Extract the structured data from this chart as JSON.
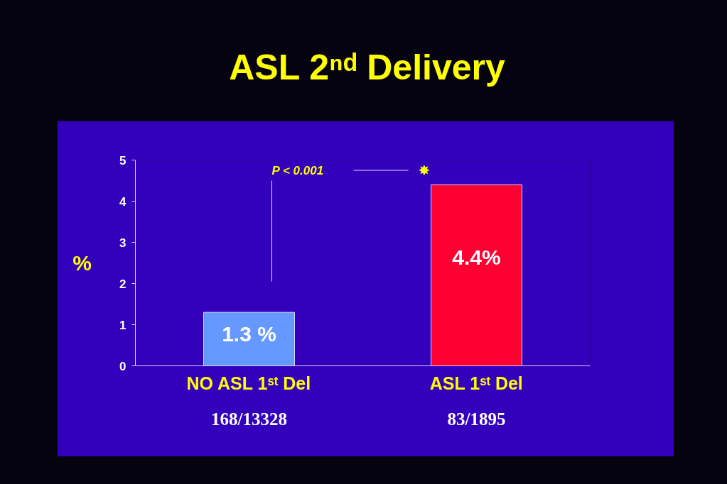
{
  "chart_data": {
    "type": "bar",
    "title": "ASL 2ⁿᵈ Delivery",
    "ylabel": "%",
    "categories": [
      "NO ASL 1ˢᵗ Del",
      "ASL 1ˢᵗ Del"
    ],
    "values": [
      1.3,
      4.4
    ],
    "colors": [
      "#6699ff",
      "#ff0033"
    ],
    "value_labels": [
      "1.3 %",
      "4.4%"
    ],
    "ylim": [
      0,
      5
    ],
    "yticks": [
      0,
      1,
      2,
      3,
      4,
      5
    ],
    "grid": false,
    "annotations": [
      "168/13328",
      "83/1895",
      "P < 0.001",
      "✸"
    ]
  }
}
